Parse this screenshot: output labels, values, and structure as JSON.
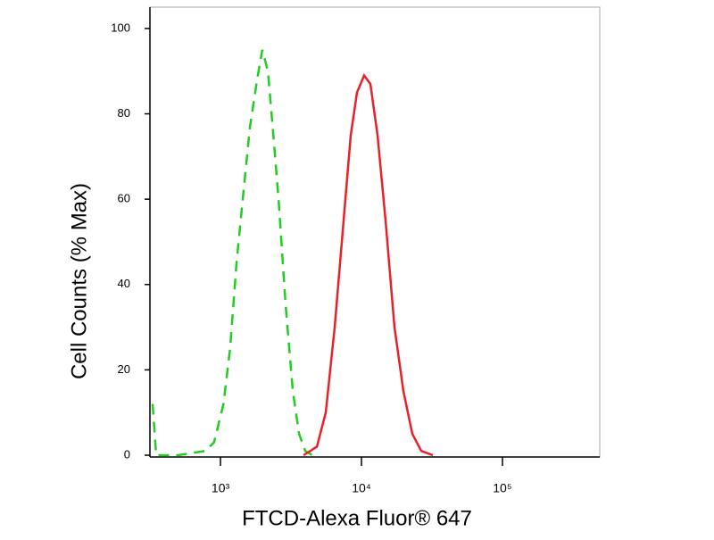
{
  "chart_data": {
    "type": "line",
    "log_x": true,
    "x_label": "FTCD-Alexa Fluor® 647",
    "y_label": "Cell Counts (% Max)",
    "xlim": [
      316,
      490000
    ],
    "ylim": [
      0,
      105
    ],
    "xticks": [
      {
        "value": 1000,
        "label": "10³"
      },
      {
        "value": 10000,
        "label": "10⁴"
      },
      {
        "value": 100000,
        "label": "10⁵"
      }
    ],
    "yticks": [
      0,
      20,
      40,
      60,
      80,
      100
    ],
    "series": [
      {
        "color": "#22cc22",
        "dashed": true,
        "x": [
          330,
          350,
          500,
          780,
          900,
          1050,
          1170,
          1300,
          1440,
          1620,
          1820,
          1980,
          2170,
          2330,
          2580,
          2900,
          3260,
          3610,
          3990,
          4490
        ],
        "values": [
          12,
          0,
          0,
          1,
          3,
          12,
          25,
          45,
          60,
          77,
          88,
          95,
          90,
          78,
          60,
          35,
          15,
          5,
          1,
          0
        ]
      },
      {
        "color": "#e8202a",
        "dashed": false,
        "x": [
          3880,
          4830,
          5580,
          6460,
          7470,
          8400,
          9300,
          10450,
          11570,
          13000,
          14820,
          17150,
          19840,
          22950,
          26560,
          32090
        ],
        "values": [
          0,
          2,
          10,
          30,
          55,
          75,
          85,
          89,
          87,
          75,
          55,
          30,
          15,
          5,
          1,
          0
        ]
      }
    ]
  }
}
